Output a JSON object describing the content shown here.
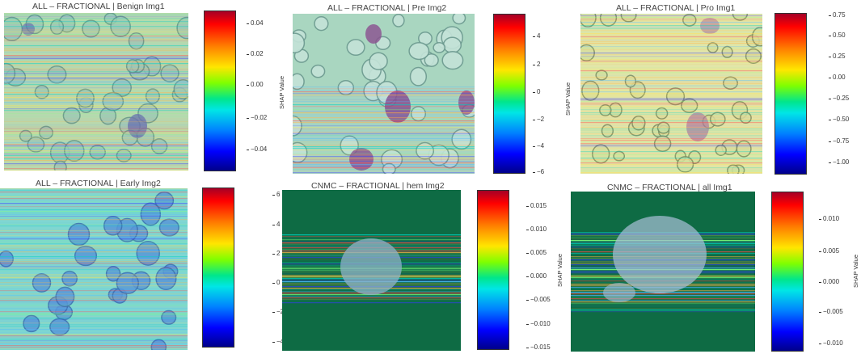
{
  "panels": [
    {
      "title": "ALL – FRACTIONAL | Benign Img1",
      "colorbar_label": "SHAP Value",
      "ticks": [
        "0.04",
        "0.02",
        "0.00",
        "−0.02",
        "−0.04"
      ]
    },
    {
      "title": "ALL – FRACTIONAL | Pre Img2",
      "colorbar_label": "SHAP Value",
      "ticks": [
        "4",
        "2",
        "0",
        "−2",
        "−4",
        "−6"
      ]
    },
    {
      "title": "ALL – FRACTIONAL | Pro Img1",
      "colorbar_label": "",
      "ticks": [
        "0.75",
        "0.50",
        "0.25",
        "0.00",
        "−0.25",
        "−0.50",
        "−0.75",
        "−1.00"
      ]
    },
    {
      "title": "ALL – FRACTIONAL | Early Img2",
      "colorbar_label": "",
      "ticks": [
        "6",
        "4",
        "2",
        "0",
        "−2",
        "−4"
      ]
    },
    {
      "title": "CNMC – FRACTIONAL | hem Img2",
      "colorbar_label": "SHAP Value",
      "ticks": [
        "0.015",
        "0.010",
        "0.005",
        "0.000",
        "−0.005",
        "−0.010",
        "−0.015"
      ]
    },
    {
      "title": "CNMC – FRACTIONAL | all Img1",
      "colorbar_label": "SHAP Value",
      "ticks": [
        "0.010",
        "0.005",
        "0.000",
        "−0.005",
        "−0.010"
      ]
    }
  ],
  "colors": {
    "colormap": "jet",
    "cnmc_background": "#0e6b44"
  }
}
